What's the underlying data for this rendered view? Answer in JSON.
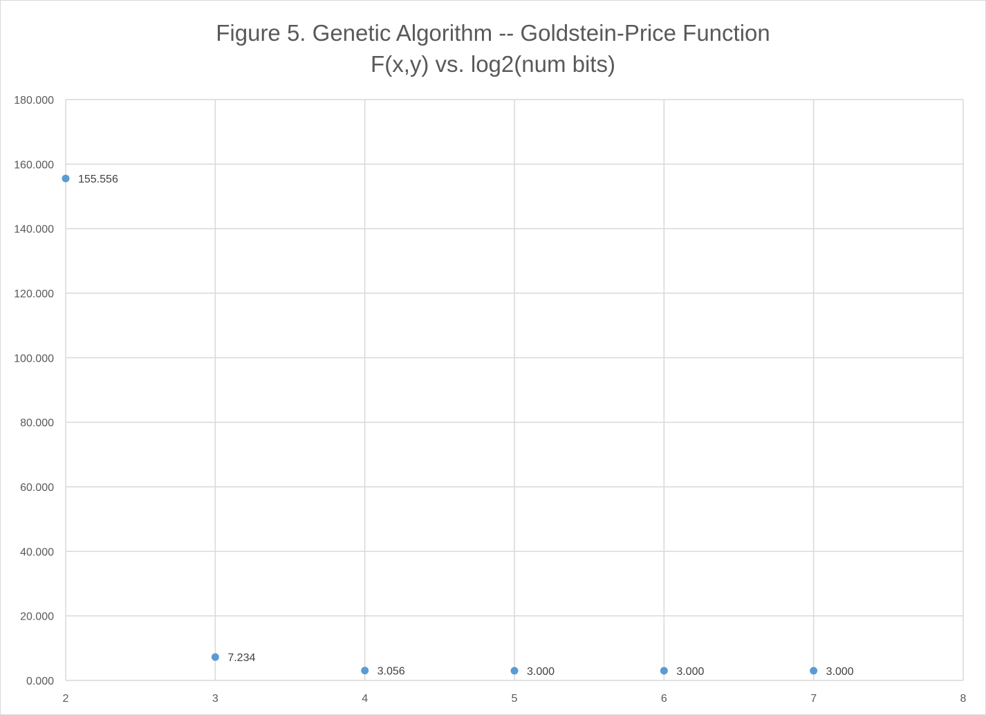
{
  "chart_data": {
    "type": "scatter",
    "title": "Figure 5. Genetic Algorithm -- Goldstein-Price Function",
    "subtitle": "F(x,y) vs. log2(num bits)",
    "xlabel": "",
    "ylabel": "",
    "xlim": [
      2,
      8
    ],
    "ylim": [
      0,
      180
    ],
    "x_ticks": [
      "2",
      "3",
      "4",
      "5",
      "6",
      "7",
      "8"
    ],
    "y_ticks": [
      "0.000",
      "20.000",
      "40.000",
      "60.000",
      "80.000",
      "100.000",
      "120.000",
      "140.000",
      "160.000",
      "180.000"
    ],
    "grid": true,
    "legend": "none",
    "series": [
      {
        "color": "#5b9bd5",
        "points": [
          {
            "x": 2,
            "y": 155.556,
            "label": "155.556"
          },
          {
            "x": 3,
            "y": 7.234,
            "label": "7.234"
          },
          {
            "x": 4,
            "y": 3.056,
            "label": "3.056"
          },
          {
            "x": 5,
            "y": 3.0,
            "label": "3.000"
          },
          {
            "x": 6,
            "y": 3.0,
            "label": "3.000"
          },
          {
            "x": 7,
            "y": 3.0,
            "label": "3.000"
          }
        ]
      }
    ]
  }
}
